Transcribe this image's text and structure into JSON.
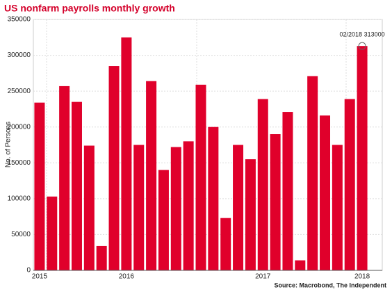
{
  "chart_data": {
    "type": "bar",
    "title": "US nonfarm payrolls monthly growth",
    "y_label": "No. of Persons",
    "source": "Source: Macrobond, The Independent",
    "annotation": "02/2018 313000",
    "categories": [
      "2015",
      null,
      null,
      null,
      null,
      null,
      null,
      "2016",
      null,
      null,
      null,
      null,
      null,
      null,
      null,
      null,
      null,
      null,
      "2017",
      null,
      null,
      null,
      null,
      null,
      null,
      null,
      "2018"
    ],
    "values": [
      234000,
      103000,
      257000,
      235000,
      174000,
      34000,
      285000,
      325000,
      175000,
      264000,
      140000,
      172000,
      180000,
      259000,
      200000,
      73000,
      175000,
      155000,
      239000,
      190000,
      221000,
      14000,
      271000,
      216000,
      175000,
      239000,
      313000
    ],
    "color": "#e0002b",
    "ylim": [
      0,
      350000
    ],
    "yticks": [
      0,
      50000,
      100000,
      150000,
      200000,
      250000,
      300000,
      350000
    ],
    "grid": true
  }
}
